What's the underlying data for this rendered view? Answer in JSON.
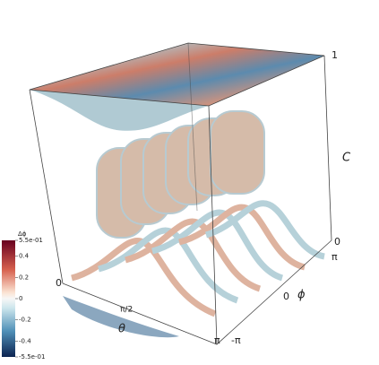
{
  "chart_data": {
    "type": "volume",
    "colorbar": {
      "title": "Δϕ",
      "lim": [
        -0.55,
        0.55
      ],
      "ticks": [
        {
          "value": 0.55,
          "label": "5.5e-01"
        },
        0.4,
        0.2,
        0,
        -0.2,
        -0.4,
        {
          "value": -0.55,
          "label": "-5.5e-01"
        }
      ]
    },
    "axes": {
      "c": {
        "title": "C",
        "ticks": [
          "1",
          "0"
        ]
      },
      "phi": {
        "title": "ϕ",
        "ticks": [
          "π",
          "0",
          "-π"
        ]
      },
      "theta": {
        "title": "θ",
        "ticks": [
          "0",
          "π/2",
          "π"
        ]
      }
    }
  }
}
